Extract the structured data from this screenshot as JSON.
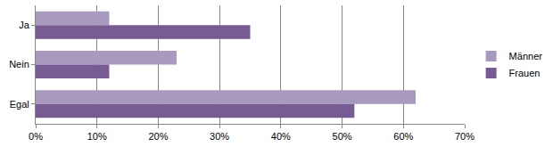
{
  "chart_data": {
    "type": "bar",
    "orientation": "horizontal",
    "categories": [
      "Ja",
      "Nein",
      "Egal"
    ],
    "series": [
      {
        "name": "Männer",
        "color": "#a899be",
        "values": [
          12,
          23,
          62
        ]
      },
      {
        "name": "Frauen",
        "color": "#775b93",
        "values": [
          35,
          12,
          52
        ]
      }
    ],
    "xlim": [
      0,
      70
    ],
    "xticks": [
      {
        "value": 0,
        "label": "0%"
      },
      {
        "value": 10,
        "label": "10%"
      },
      {
        "value": 20,
        "label": "20%"
      },
      {
        "value": 30,
        "label": "30%"
      },
      {
        "value": 40,
        "label": "40%"
      },
      {
        "value": 50,
        "label": "50%"
      },
      {
        "value": 60,
        "label": "60%"
      },
      {
        "value": 70,
        "label": "70%"
      }
    ],
    "grid": true,
    "legend": "right"
  }
}
